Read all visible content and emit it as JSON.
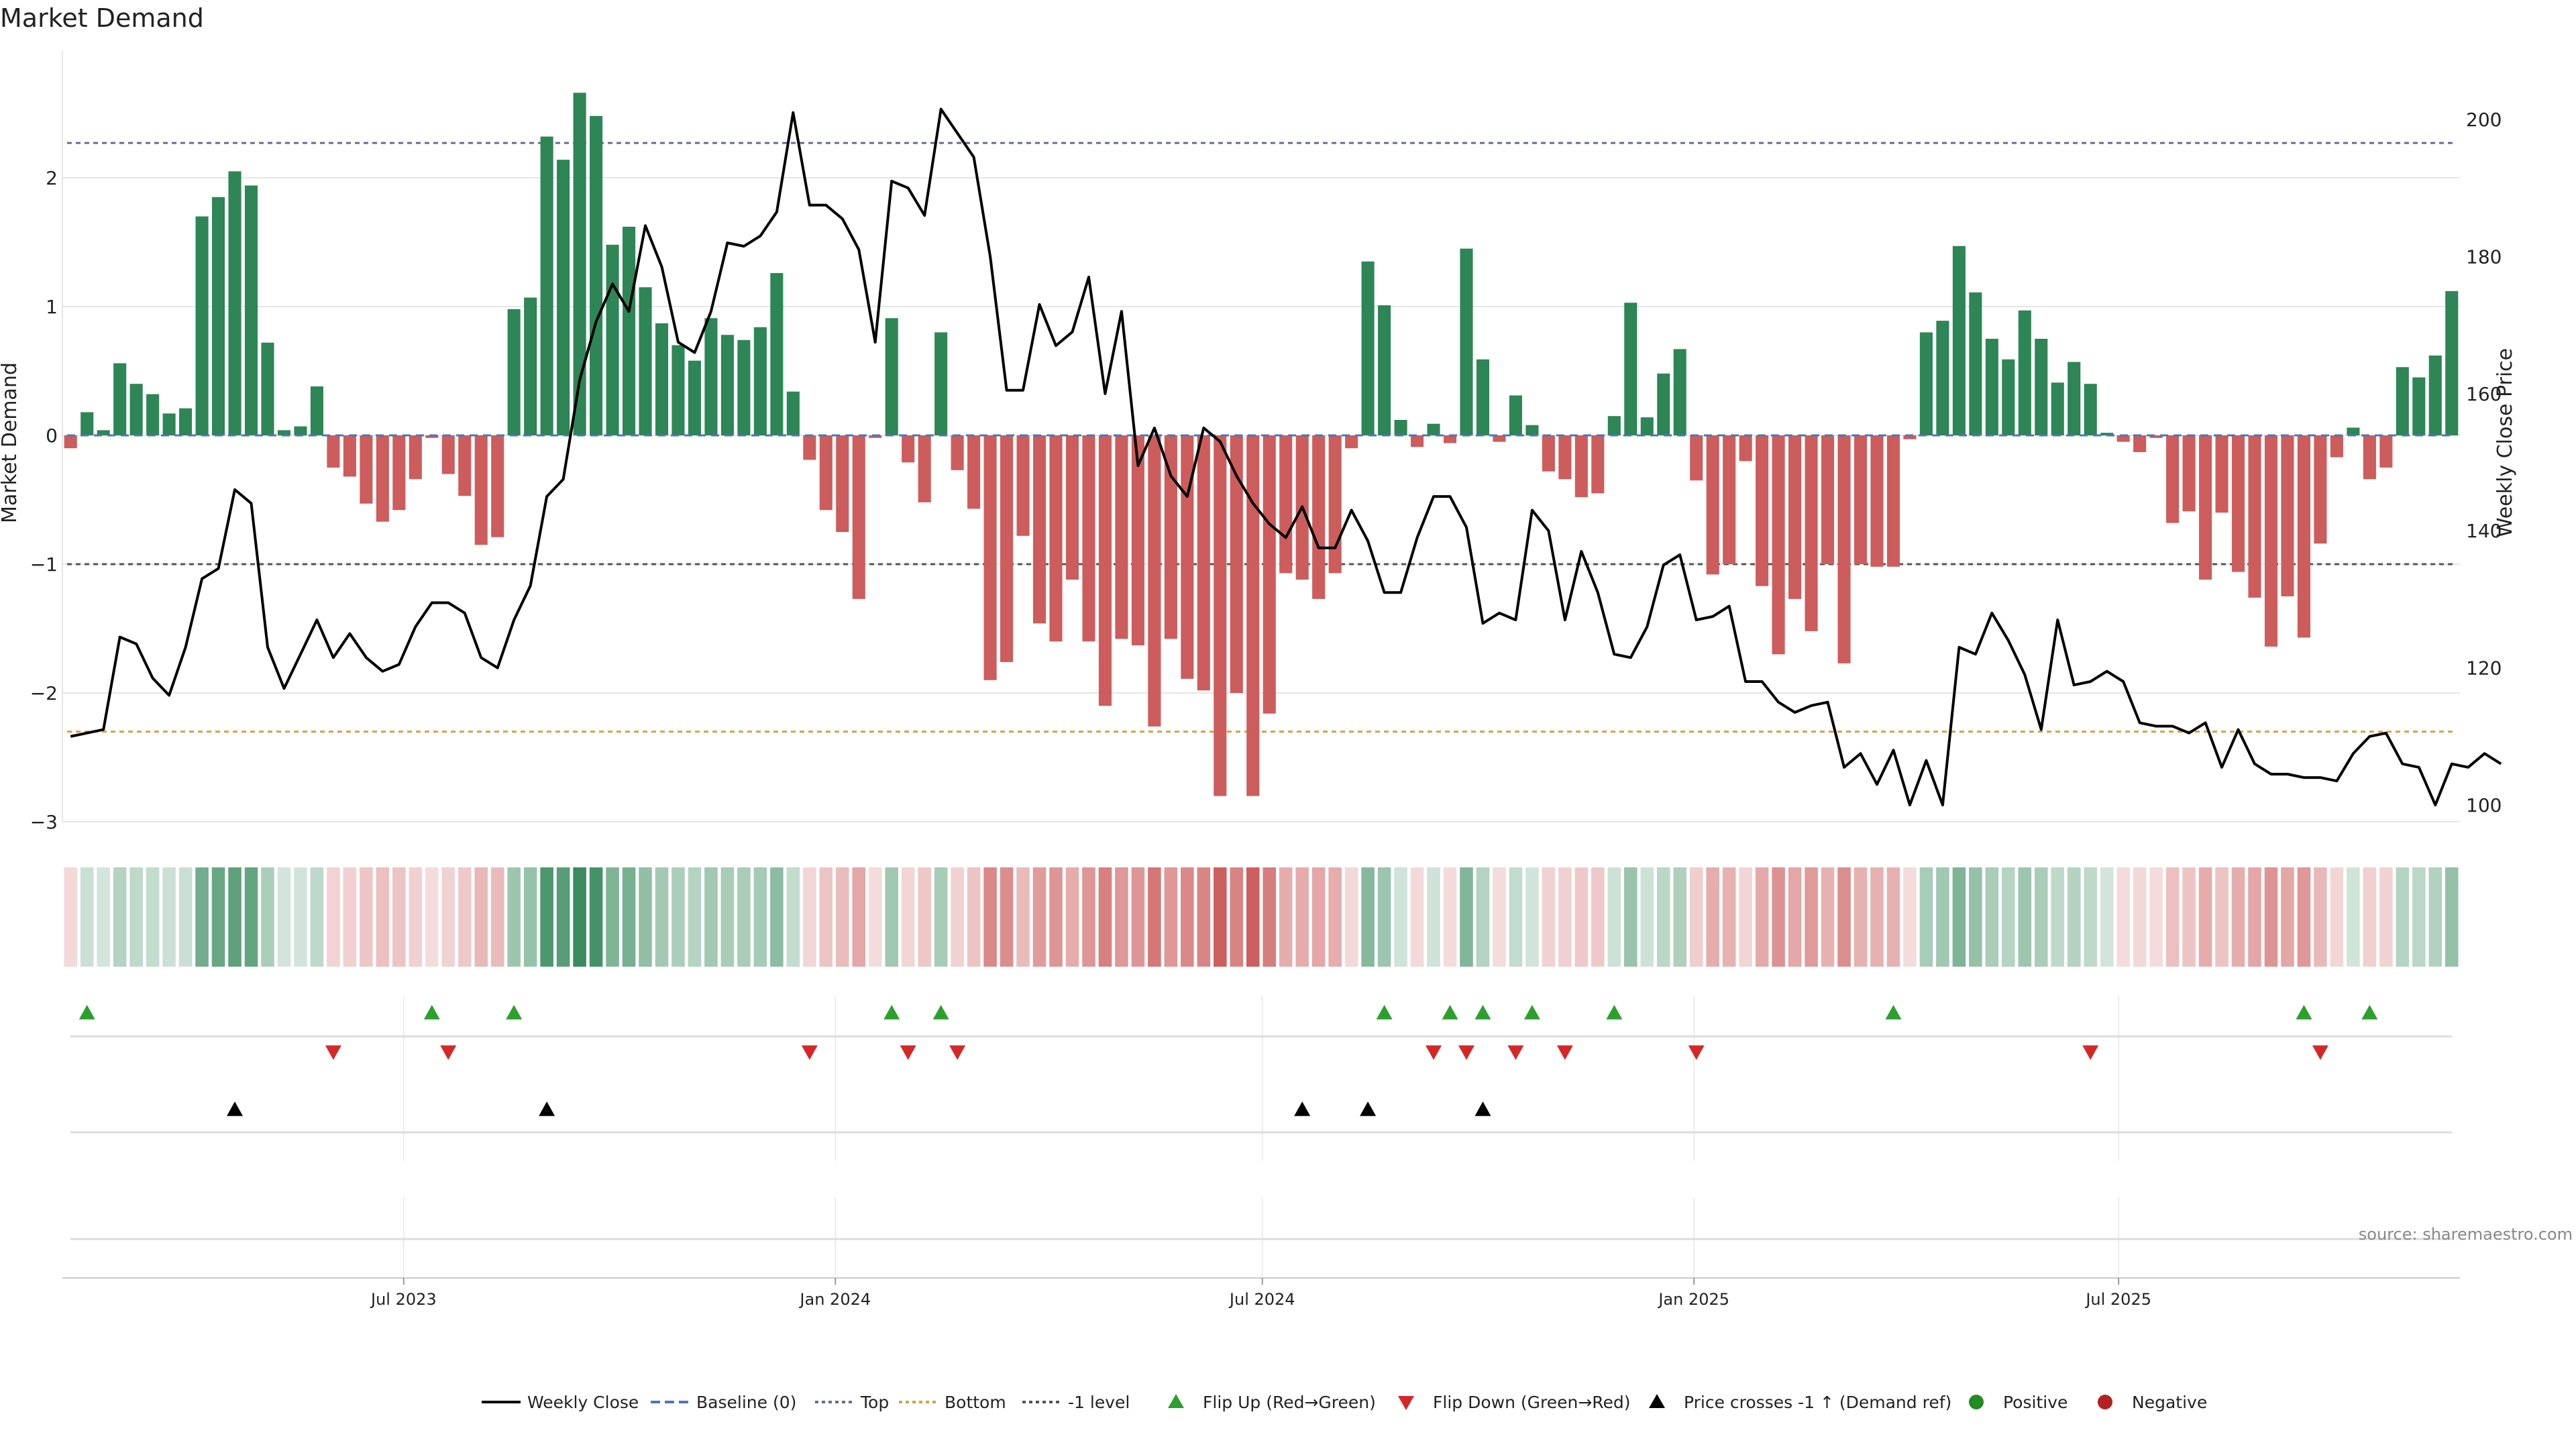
{
  "chart_data": {
    "type": "bar",
    "title": "Market Demand",
    "ylabel": "Market Demand",
    "y2label": "Weekly Close Price",
    "source": "source: sharemaestro.com",
    "ylim": [
      -3.2,
      2.95
    ],
    "y2lim": [
      98,
      211
    ],
    "yticks": [
      -3,
      -2,
      -1,
      0,
      1,
      2
    ],
    "y2ticks": [
      100,
      120,
      140,
      160,
      180,
      200
    ],
    "reference_lines": {
      "top": 2.27,
      "bottom": -2.3,
      "minus_one": -1.0,
      "baseline": 0
    },
    "date_start": "2023-02-09",
    "x_ticks": [
      {
        "date": "2023-07-01",
        "label": "Jul 2023"
      },
      {
        "date": "2024-01-01",
        "label": "Jan 2024"
      },
      {
        "date": "2024-07-01",
        "label": "Jul 2024"
      },
      {
        "date": "2025-01-01",
        "label": "Jan 2025"
      },
      {
        "date": "2025-07-01",
        "label": "Jul 2025"
      }
    ],
    "demand": [
      -0.1,
      0.18,
      0.04,
      0.56,
      0.4,
      0.32,
      0.17,
      0.21,
      1.7,
      1.85,
      2.05,
      1.94,
      0.72,
      0.04,
      0.07,
      0.38,
      -0.25,
      -0.32,
      -0.53,
      -0.67,
      -0.58,
      -0.34,
      -0.02,
      -0.3,
      -0.47,
      -0.85,
      -0.79,
      0.98,
      1.07,
      2.32,
      2.14,
      2.66,
      2.48,
      1.48,
      1.62,
      1.15,
      0.87,
      0.7,
      0.58,
      0.91,
      0.78,
      0.74,
      0.84,
      1.26,
      0.34,
      -0.19,
      -0.58,
      -0.75,
      -1.27,
      -0.02,
      0.91,
      -0.21,
      -0.52,
      0.8,
      -0.27,
      -0.57,
      -1.9,
      -1.76,
      -0.78,
      -1.46,
      -1.6,
      -1.12,
      -1.6,
      -2.1,
      -1.58,
      -1.63,
      -2.26,
      -1.58,
      -1.89,
      -1.98,
      -2.8,
      -2.0,
      -2.8,
      -2.16,
      -1.07,
      -1.12,
      -1.27,
      -1.07,
      -0.1,
      1.35,
      1.01,
      0.12,
      -0.09,
      0.09,
      -0.06,
      1.45,
      0.59,
      -0.05,
      0.31,
      0.08,
      -0.28,
      -0.34,
      -0.48,
      -0.45,
      0.15,
      1.03,
      0.14,
      0.48,
      0.67,
      -0.35,
      -1.08,
      -1.0,
      -0.2,
      -1.17,
      -1.7,
      -1.27,
      -1.52,
      -1.0,
      -1.77,
      -1.0,
      -1.02,
      -1.02,
      -0.03,
      0.8,
      0.89,
      1.47,
      1.11,
      0.75,
      0.59,
      0.97,
      0.75,
      0.41,
      0.57,
      0.4,
      0.02,
      -0.05,
      -0.13,
      -0.02,
      -0.68,
      -0.59,
      -1.12,
      -0.6,
      -1.06,
      -1.26,
      -1.64,
      -1.25,
      -1.57,
      -0.84,
      -0.17,
      0.06,
      -0.34,
      -0.25,
      0.53,
      0.45,
      0.62,
      1.12
    ],
    "price": [
      110,
      110.5,
      111,
      124.5,
      123.5,
      118.5,
      116,
      123,
      133,
      134.5,
      146,
      144,
      123,
      117,
      122,
      127,
      121.5,
      125,
      121.5,
      119.5,
      120.5,
      126,
      129.5,
      129.5,
      128,
      121.5,
      120,
      127,
      132,
      145,
      147.5,
      162,
      170.5,
      176,
      172,
      184.5,
      178.5,
      167.5,
      166,
      172,
      182,
      181.5,
      183,
      186.5,
      201,
      187.5,
      187.5,
      185.5,
      181,
      167.5,
      191,
      190,
      186,
      201.5,
      198,
      194.5,
      180,
      160.5,
      160.5,
      173,
      167,
      169,
      177,
      160,
      172,
      149.5,
      155,
      148,
      145,
      155,
      153,
      148,
      144,
      141,
      139,
      143.5,
      137.5,
      137.5,
      143,
      138.5,
      131,
      131,
      139,
      145,
      145,
      140.5,
      126.5,
      128,
      127,
      143,
      140,
      127,
      137,
      131,
      122,
      121.5,
      126,
      135,
      136.5,
      127,
      127.5,
      129,
      118,
      118,
      115,
      113.5,
      114.5,
      115,
      105.5,
      107.5,
      103,
      108,
      100,
      106.5,
      100,
      123,
      122,
      128,
      124,
      119,
      111,
      127,
      117.5,
      118,
      119.5,
      118,
      112,
      111.5,
      111.5,
      110.5,
      112,
      105.5,
      111,
      106,
      104.5,
      104.5,
      104,
      104,
      103.5,
      107.5,
      110,
      110.5,
      106,
      105.5,
      100,
      106,
      105.5,
      107.5,
      106
    ],
    "flip_up": [
      1,
      22,
      27,
      50,
      53,
      80,
      84,
      86,
      89,
      94,
      111,
      136,
      140
    ],
    "flip_down": [
      16,
      23,
      45,
      51,
      54,
      83,
      85,
      88,
      91,
      99,
      123,
      137
    ],
    "price_cross_up": [
      10,
      29,
      75,
      79,
      86
    ],
    "legend": [
      "Weekly Close",
      "Baseline (0)",
      "Top",
      "Bottom",
      "-1 level",
      "Flip Up (Red→Green)",
      "Flip Down (Green→Red)",
      "Price crosses -1 ↑ (Demand ref)",
      "Positive",
      "Negative"
    ],
    "colors": {
      "positive": "#2e8555",
      "negative": "#cd5c5c",
      "price": "#000000",
      "top": "#6a6a9a",
      "bottom": "#d9a040",
      "minus_one": "#555555",
      "baseline": "#4a78b8",
      "flip_up": "#2ca02c",
      "flip_down": "#d62728",
      "cross": "#000000",
      "legend_positive": "#228b22",
      "legend_negative": "#b22222"
    }
  }
}
